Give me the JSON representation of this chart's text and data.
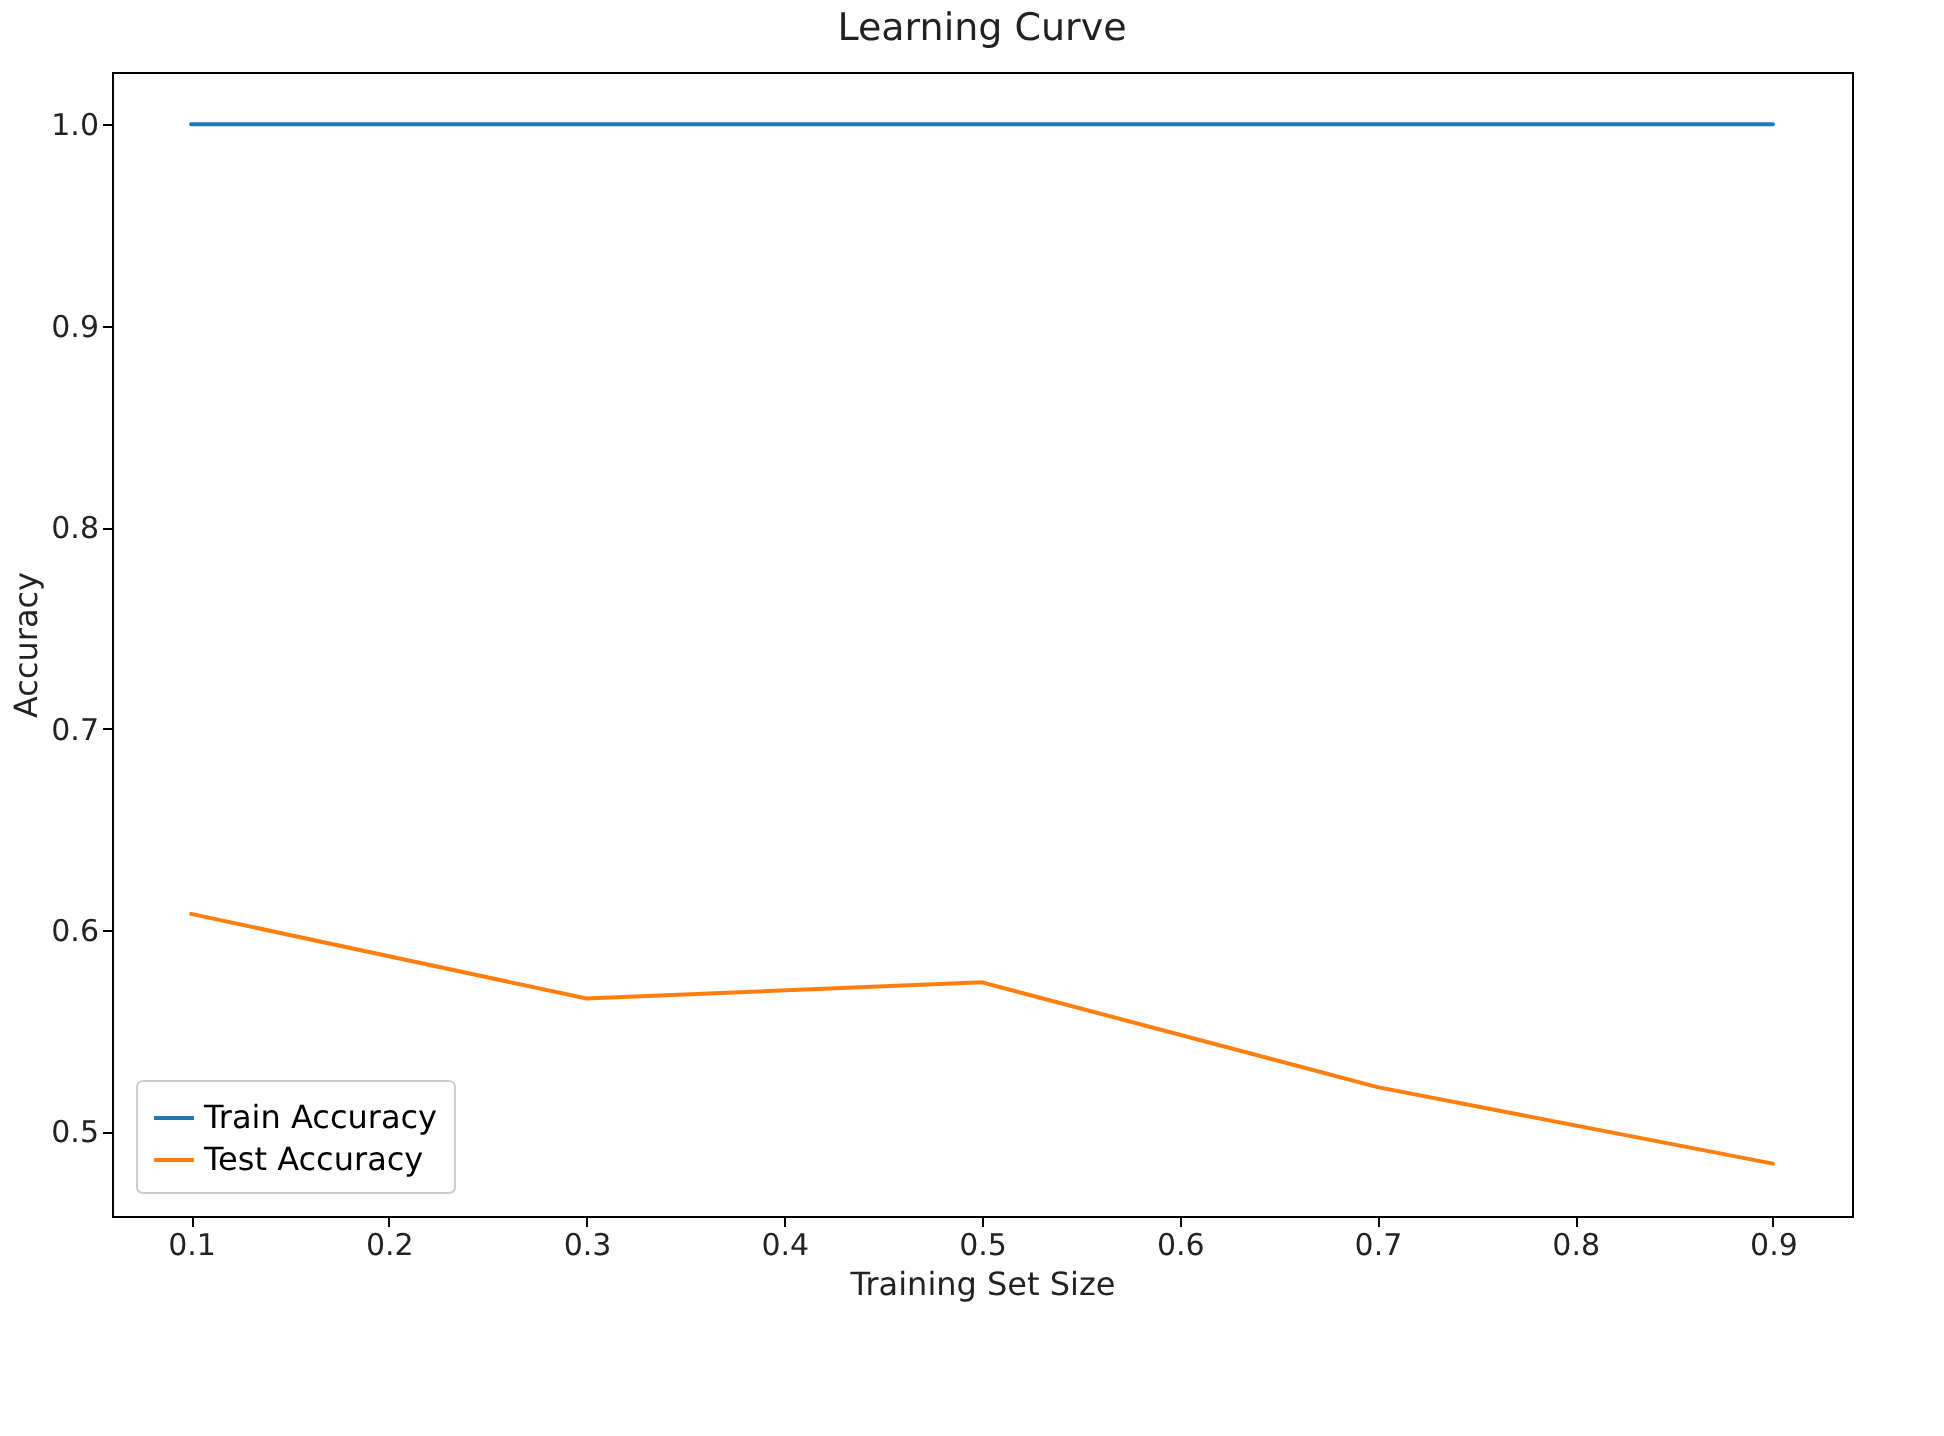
{
  "chart_data": {
    "type": "line",
    "title": "Learning Curve",
    "xlabel": "Training Set Size",
    "ylabel": "Accuracy",
    "x": [
      0.1,
      0.3,
      0.5,
      0.7,
      0.9
    ],
    "series": [
      {
        "name": "Train Accuracy",
        "color": "#1f77b4",
        "values": [
          1.0,
          1.0,
          1.0,
          1.0,
          1.0
        ]
      },
      {
        "name": "Test Accuracy",
        "color": "#ff7f0e",
        "values": [
          0.608,
          0.566,
          0.574,
          0.522,
          0.484
        ]
      }
    ],
    "xlim": [
      0.06,
      0.94
    ],
    "xticks": [
      0.1,
      0.2,
      0.3,
      0.4,
      0.5,
      0.6,
      0.7,
      0.8,
      0.9
    ],
    "ylim": [
      0.458,
      1.026
    ],
    "yticks": [
      0.5,
      0.6,
      0.7,
      0.8,
      0.9,
      {
        "value": 1.0,
        "label": "1.0"
      }
    ],
    "grid": false,
    "legend": "bottom left",
    "marker": "none",
    "line_style": "solid"
  }
}
